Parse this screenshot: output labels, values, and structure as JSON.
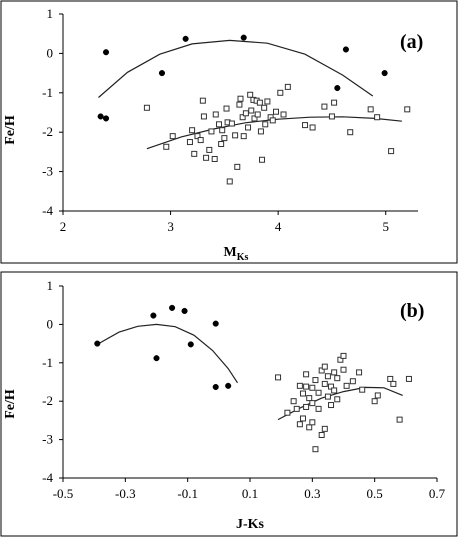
{
  "chart_data": [
    {
      "type": "scatter",
      "panel_label": "(a)",
      "xlabel": "M",
      "xlabel_sub": "Ks",
      "ylabel": "Fe/H",
      "xlim": [
        2,
        5.3
      ],
      "ylim": [
        -4,
        1
      ],
      "xticks": [
        2,
        3,
        4,
        5
      ],
      "yticks": [
        1,
        0,
        -1,
        -2,
        -3,
        -4
      ],
      "grid": false,
      "series": [
        {
          "marker": "filled-circle",
          "points": [
            [
              2.35,
              -1.6
            ],
            [
              2.4,
              -1.65
            ],
            [
              2.4,
              0.03
            ],
            [
              2.92,
              -0.5
            ],
            [
              3.14,
              0.37
            ],
            [
              3.68,
              0.4
            ],
            [
              4.63,
              0.1
            ],
            [
              4.55,
              -0.88
            ],
            [
              4.99,
              -0.5
            ]
          ]
        },
        {
          "marker": "open-square",
          "points": [
            [
              2.78,
              -1.38
            ],
            [
              2.96,
              -2.37
            ],
            [
              3.02,
              -2.1
            ],
            [
              3.18,
              -2.25
            ],
            [
              3.2,
              -1.95
            ],
            [
              3.22,
              -2.55
            ],
            [
              3.25,
              -2.1
            ],
            [
              3.28,
              -2.2
            ],
            [
              3.3,
              -1.2
            ],
            [
              3.31,
              -1.6
            ],
            [
              3.33,
              -2.65
            ],
            [
              3.36,
              -2.45
            ],
            [
              3.38,
              -1.98
            ],
            [
              3.41,
              -2.68
            ],
            [
              3.42,
              -1.55
            ],
            [
              3.45,
              -1.8
            ],
            [
              3.47,
              -2.3
            ],
            [
              3.48,
              -1.95
            ],
            [
              3.5,
              -2.15
            ],
            [
              3.52,
              -1.4
            ],
            [
              3.53,
              -1.75
            ],
            [
              3.55,
              -3.25
            ],
            [
              3.57,
              -1.78
            ],
            [
              3.6,
              -2.08
            ],
            [
              3.62,
              -2.88
            ],
            [
              3.64,
              -1.3
            ],
            [
              3.65,
              -1.15
            ],
            [
              3.67,
              -1.62
            ],
            [
              3.68,
              -2.1
            ],
            [
              3.7,
              -1.52
            ],
            [
              3.72,
              -1.88
            ],
            [
              3.74,
              -1.05
            ],
            [
              3.75,
              -1.45
            ],
            [
              3.77,
              -1.18
            ],
            [
              3.78,
              -1.65
            ],
            [
              3.8,
              -1.2
            ],
            [
              3.81,
              -1.55
            ],
            [
              3.83,
              -1.25
            ],
            [
              3.84,
              -1.98
            ],
            [
              3.85,
              -2.7
            ],
            [
              3.87,
              -1.38
            ],
            [
              3.88,
              -1.8
            ],
            [
              3.9,
              -1.22
            ],
            [
              3.93,
              -1.62
            ],
            [
              3.95,
              -1.7
            ],
            [
              3.98,
              -1.48
            ],
            [
              4.02,
              -1.0
            ],
            [
              4.05,
              -1.55
            ],
            [
              4.09,
              -0.85
            ],
            [
              4.25,
              -1.82
            ],
            [
              4.32,
              -1.88
            ],
            [
              4.43,
              -1.35
            ],
            [
              4.5,
              -1.6
            ],
            [
              4.52,
              -1.25
            ],
            [
              4.67,
              -2.0
            ],
            [
              4.86,
              -1.42
            ],
            [
              4.92,
              -1.62
            ],
            [
              5.05,
              -2.48
            ],
            [
              5.2,
              -1.42
            ]
          ]
        }
      ],
      "fit_curves": [
        {
          "points": [
            [
              2.33,
              -1.12
            ],
            [
              2.6,
              -0.48
            ],
            [
              2.9,
              -0.02
            ],
            [
              3.2,
              0.24
            ],
            [
              3.55,
              0.33
            ],
            [
              3.9,
              0.26
            ],
            [
              4.25,
              -0.02
            ],
            [
              4.6,
              -0.55
            ],
            [
              4.88,
              -1.08
            ]
          ]
        },
        {
          "points": [
            [
              2.78,
              -2.42
            ],
            [
              3.1,
              -2.12
            ],
            [
              3.4,
              -1.92
            ],
            [
              3.7,
              -1.76
            ],
            [
              4.0,
              -1.67
            ],
            [
              4.3,
              -1.62
            ],
            [
              4.6,
              -1.61
            ],
            [
              4.9,
              -1.65
            ],
            [
              5.15,
              -1.72
            ]
          ]
        }
      ]
    },
    {
      "type": "scatter",
      "panel_label": "(b)",
      "xlabel": "J-Ks",
      "ylabel": "Fe/H",
      "xlim": [
        -0.5,
        0.7
      ],
      "ylim": [
        -4,
        1
      ],
      "xticks": [
        -0.5,
        -0.3,
        -0.1,
        0.1,
        0.3,
        0.5,
        0.7
      ],
      "xtick_labels": [
        "-0.5",
        "-0.3",
        "-0.1",
        "0.1",
        "0.3",
        "0.5",
        "0.7"
      ],
      "yticks": [
        1,
        0,
        -1,
        -2,
        -3,
        -4
      ],
      "grid": false,
      "series": [
        {
          "marker": "filled-circle",
          "points": [
            [
              -0.39,
              -0.5
            ],
            [
              -0.21,
              0.23
            ],
            [
              -0.2,
              -0.88
            ],
            [
              -0.15,
              0.43
            ],
            [
              -0.11,
              0.35
            ],
            [
              -0.09,
              -0.52
            ],
            [
              -0.01,
              0.02
            ],
            [
              -0.01,
              -1.63
            ],
            [
              0.03,
              -1.6
            ]
          ]
        },
        {
          "marker": "open-square",
          "points": [
            [
              0.19,
              -1.38
            ],
            [
              0.22,
              -2.3
            ],
            [
              0.24,
              -2.0
            ],
            [
              0.25,
              -2.2
            ],
            [
              0.26,
              -1.6
            ],
            [
              0.26,
              -2.6
            ],
            [
              0.27,
              -1.8
            ],
            [
              0.27,
              -2.45
            ],
            [
              0.28,
              -2.15
            ],
            [
              0.28,
              -1.3
            ],
            [
              0.29,
              -1.92
            ],
            [
              0.29,
              -2.68
            ],
            [
              0.3,
              -1.65
            ],
            [
              0.3,
              -2.05
            ],
            [
              0.31,
              -3.25
            ],
            [
              0.31,
              -1.45
            ],
            [
              0.32,
              -2.2
            ],
            [
              0.32,
              -1.78
            ],
            [
              0.33,
              -2.88
            ],
            [
              0.33,
              -1.2
            ],
            [
              0.34,
              -1.55
            ],
            [
              0.34,
              -1.1
            ],
            [
              0.35,
              -1.88
            ],
            [
              0.35,
              -1.35
            ],
            [
              0.36,
              -1.62
            ],
            [
              0.36,
              -2.1
            ],
            [
              0.37,
              -1.25
            ],
            [
              0.37,
              -1.72
            ],
            [
              0.38,
              -1.4
            ],
            [
              0.38,
              -1.95
            ],
            [
              0.39,
              -0.92
            ],
            [
              0.4,
              -1.18
            ],
            [
              0.4,
              -0.82
            ],
            [
              0.41,
              -1.6
            ],
            [
              0.43,
              -1.48
            ],
            [
              0.45,
              -1.25
            ],
            [
              0.46,
              -1.7
            ],
            [
              0.5,
              -2.0
            ],
            [
              0.51,
              -1.85
            ],
            [
              0.55,
              -1.42
            ],
            [
              0.56,
              -1.55
            ],
            [
              0.58,
              -2.48
            ],
            [
              0.61,
              -1.42
            ],
            [
              0.3,
              -2.55
            ],
            [
              0.34,
              -2.72
            ],
            [
              0.28,
              -1.62
            ]
          ]
        }
      ],
      "fit_curves": [
        {
          "points": [
            [
              -0.39,
              -0.52
            ],
            [
              -0.32,
              -0.2
            ],
            [
              -0.26,
              -0.05
            ],
            [
              -0.2,
              0.0
            ],
            [
              -0.14,
              -0.06
            ],
            [
              -0.08,
              -0.28
            ],
            [
              -0.02,
              -0.68
            ],
            [
              0.03,
              -1.15
            ],
            [
              0.06,
              -1.52
            ]
          ]
        },
        {
          "points": [
            [
              0.19,
              -2.48
            ],
            [
              0.26,
              -2.18
            ],
            [
              0.33,
              -1.92
            ],
            [
              0.4,
              -1.75
            ],
            [
              0.47,
              -1.64
            ],
            [
              0.53,
              -1.65
            ],
            [
              0.59,
              -1.85
            ]
          ]
        }
      ]
    }
  ]
}
